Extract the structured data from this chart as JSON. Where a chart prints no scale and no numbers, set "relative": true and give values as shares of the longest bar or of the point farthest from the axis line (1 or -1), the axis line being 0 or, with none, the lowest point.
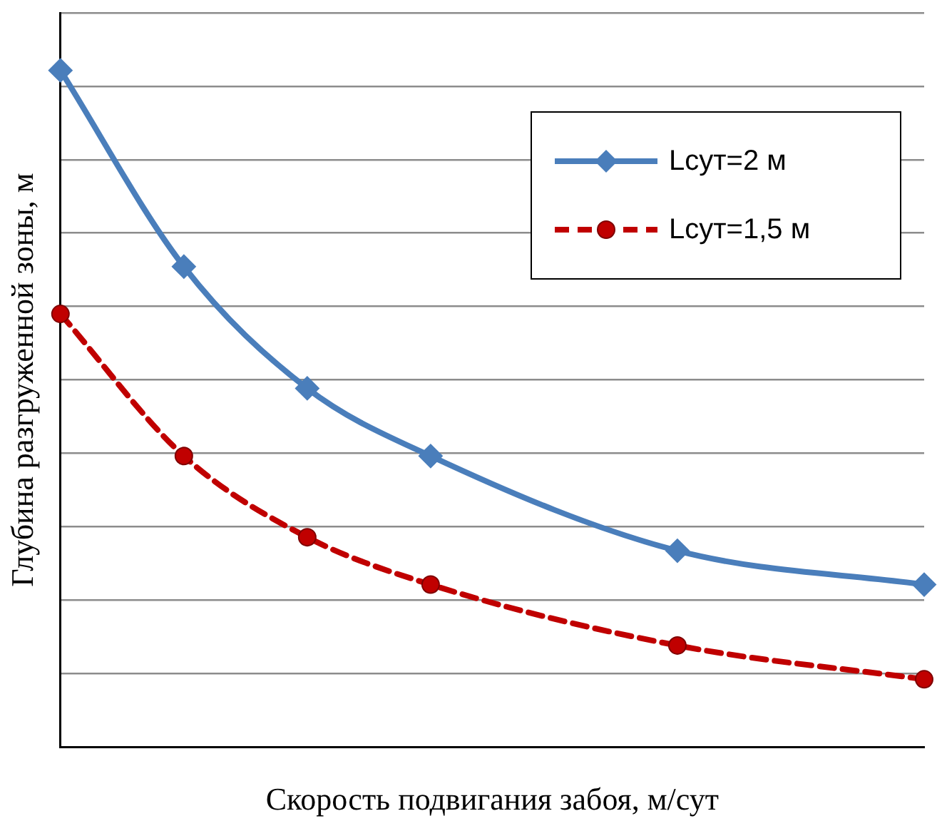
{
  "chart_data": {
    "type": "line",
    "relative": true,
    "xlabel": "Скорость подвигания забоя, м/сут",
    "ylabel": "Глубина разгруженной зоны, м",
    "categories": [
      null,
      null,
      null,
      null,
      null,
      null,
      null,
      null
    ],
    "grid": "y",
    "legend": "top right",
    "series": [
      {
        "name": "Lсут=2 м",
        "color": "#4a7ebb",
        "marker": "diamond",
        "line_style": "solid",
        "values": [
          1,
          0.71,
          0.53,
          0.43,
          null,
          0.29,
          null,
          0.24
        ]
      },
      {
        "name": "Lсут=1,5 м",
        "color": "#c00000",
        "marker": "circle",
        "line_style": "dashed",
        "values": [
          0.64,
          0.43,
          0.31,
          0.24,
          null,
          0.15,
          null,
          0.1
        ]
      }
    ]
  }
}
